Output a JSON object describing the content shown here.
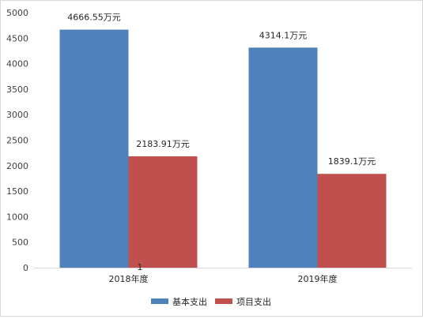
{
  "chart_data": {
    "type": "bar",
    "categories": [
      "2018年度",
      "2019年度"
    ],
    "series": [
      {
        "name": "基本支出",
        "values": [
          4666.55,
          4314.1
        ],
        "data_labels": [
          "4666.55万元",
          "4314.1万元"
        ],
        "color": "#4f81bd"
      },
      {
        "name": "项目支出",
        "values": [
          2183.91,
          1839.1
        ],
        "data_labels": [
          "2183.91万元",
          "1839.1万元"
        ],
        "color": "#c0504d"
      }
    ],
    "yticks": [
      "0",
      "500",
      "1000",
      "1500",
      "2000",
      "2500",
      "3000",
      "3500",
      "4000",
      "4500",
      "5000"
    ],
    "ylim": [
      0,
      5000
    ],
    "grid": false,
    "legend_position": "bottom",
    "annotation": "1"
  }
}
